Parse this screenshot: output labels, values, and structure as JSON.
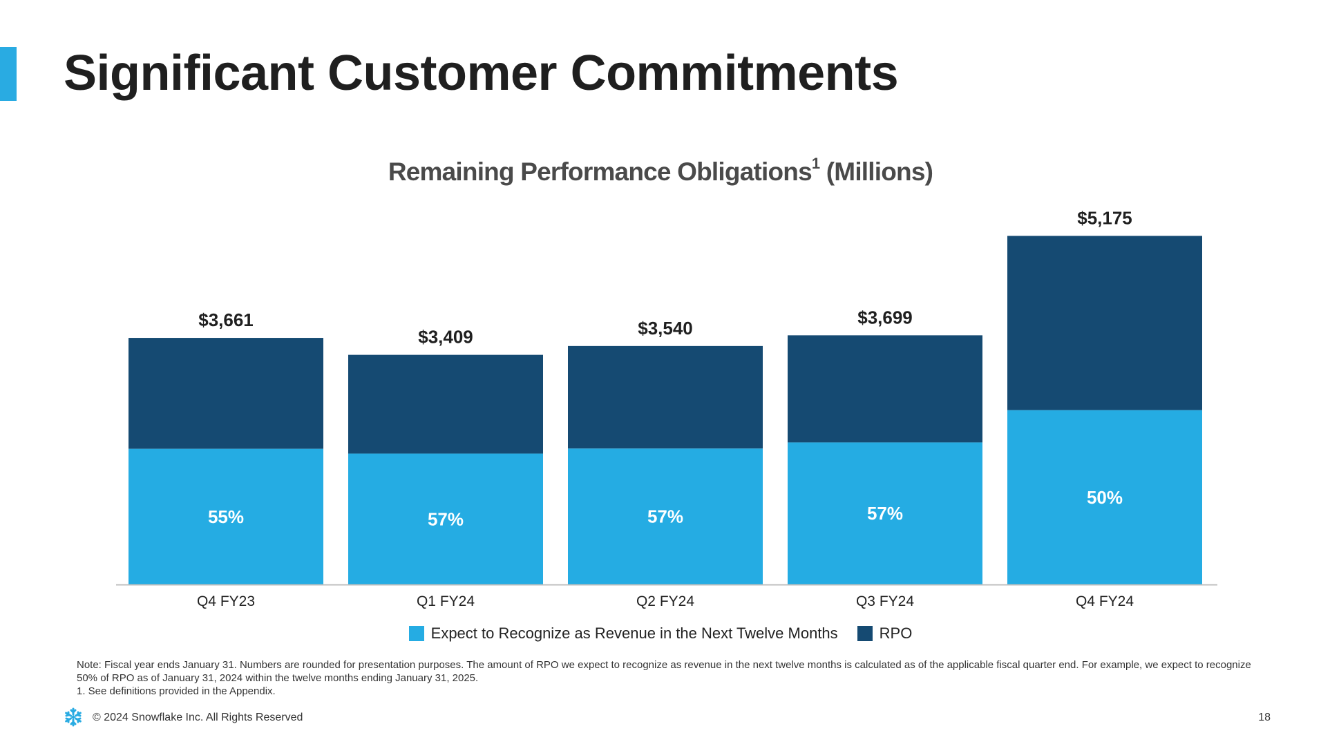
{
  "slide": {
    "title": "Significant Customer Commitments",
    "page_number": "18",
    "copyright": "© 2024 Snowflake Inc. All Rights Reserved"
  },
  "colors": {
    "accent": "#29ABE2",
    "ntm": "#25ACE3",
    "rpo": "#154A72",
    "axis": "#BFBFBF"
  },
  "chart_data": {
    "type": "bar",
    "stacked": true,
    "title": "Remaining Performance Obligations",
    "title_superscript": "1",
    "title_suffix": "(Millions)",
    "categories": [
      "Q4 FY23",
      "Q1 FY24",
      "Q2 FY24",
      "Q3 FY24",
      "Q4 FY24"
    ],
    "totals": [
      3661,
      3409,
      3540,
      3699,
      5175
    ],
    "total_labels": [
      "$3,661",
      "$3,409",
      "$3,540",
      "$3,699",
      "$5,175"
    ],
    "ntm_percent": [
      55,
      57,
      57,
      57,
      50
    ],
    "ntm_labels": [
      "55%",
      "57%",
      "57%",
      "57%",
      "50%"
    ],
    "series": [
      {
        "name": "Expect to Recognize as Revenue in the Next Twelve Months",
        "key": "ntm"
      },
      {
        "name": "RPO",
        "key": "rpo"
      }
    ],
    "ylim": [
      0,
      5600
    ],
    "grid": false,
    "legend_position": "bottom"
  },
  "notes": {
    "note": "Note: Fiscal year ends January 31. Numbers are rounded for presentation purposes. The amount of RPO we expect to recognize as revenue in the next twelve months is calculated as of the applicable fiscal quarter end. For example, we expect to recognize 50% of RPO as of January 31, 2024 within the twelve months ending January 31, 2025.",
    "footnote": "1.  See definitions provided in the Appendix."
  }
}
